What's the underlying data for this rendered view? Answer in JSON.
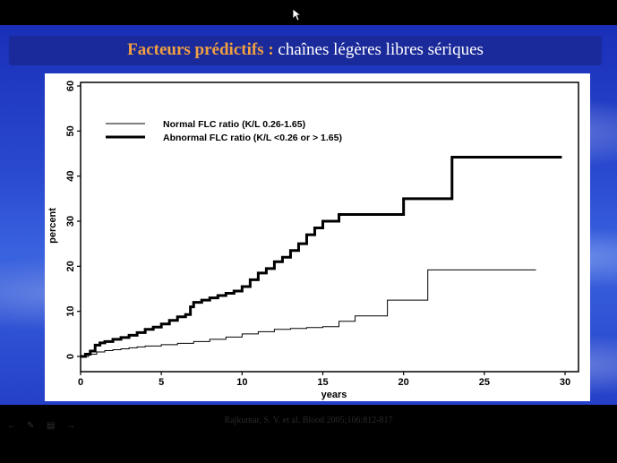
{
  "slide": {
    "title_lead": "Facteurs prédictifs :",
    "title_rest": " chaînes légères libres sériques",
    "citation": "Rajkumar, S. V. et al. Blood 2005;106:812-817"
  },
  "icons": {
    "cursor": "mouse-pointer-icon",
    "controls": [
      "previous-arrow-icon",
      "pen-icon",
      "slide-menu-icon",
      "next-icon"
    ]
  },
  "colors": {
    "title_accent": "#f0a040",
    "title_bar": "#1b2a9a",
    "slide_blue": "#2a4ad0"
  },
  "chart_data": {
    "type": "line",
    "xlabel": "years",
    "ylabel": "percent",
    "xlim": [
      0,
      30
    ],
    "ylim": [
      0,
      60
    ],
    "x_ticks": [
      0,
      5,
      10,
      15,
      20,
      25,
      30
    ],
    "y_ticks": [
      0,
      10,
      20,
      30,
      40,
      50,
      60
    ],
    "grid": false,
    "legend_position": "top-left",
    "series": [
      {
        "name": "Normal FLC ratio (K/L 0.26-1.65)",
        "style": "thin",
        "x": [
          0,
          0.5,
          1,
          1.5,
          2,
          2.5,
          3,
          3.5,
          4,
          5,
          6,
          7,
          8,
          9,
          10,
          11,
          12,
          13,
          14,
          15,
          16,
          17,
          18,
          19,
          20,
          21.5,
          22,
          28.2
        ],
        "y": [
          0,
          0.5,
          1,
          1.3,
          1.5,
          1.7,
          1.9,
          2.1,
          2.3,
          2.6,
          2.9,
          3.3,
          3.8,
          4.3,
          5,
          5.5,
          6,
          6.2,
          6.4,
          6.6,
          7.8,
          9,
          9,
          12.5,
          12.5,
          19.2,
          19.2,
          19.2
        ]
      },
      {
        "name": "Abnormal FLC ratio (K/L <0.26 or > 1.65)",
        "style": "thick",
        "x": [
          0,
          0.3,
          0.6,
          0.9,
          1.2,
          1.5,
          2,
          2.5,
          3,
          3.5,
          4,
          4.5,
          5,
          5.5,
          6,
          6.5,
          6.8,
          7,
          7.5,
          8,
          8.5,
          9,
          9.5,
          10,
          10.5,
          11,
          11.5,
          12,
          12.5,
          13,
          13.5,
          14,
          14.5,
          15,
          15.5,
          16,
          19,
          20,
          22,
          23,
          29.8
        ],
        "y": [
          0,
          0.5,
          1.2,
          2.5,
          3,
          3.3,
          3.8,
          4.2,
          4.7,
          5.3,
          6,
          6.5,
          7.2,
          8,
          8.8,
          9.3,
          11,
          12,
          12.5,
          13,
          13.5,
          14,
          14.5,
          15.5,
          17,
          18.5,
          19.5,
          21,
          22,
          23.5,
          25,
          27,
          28.5,
          30,
          30,
          31.5,
          31.5,
          35,
          35,
          44.2,
          44.2
        ]
      }
    ]
  }
}
